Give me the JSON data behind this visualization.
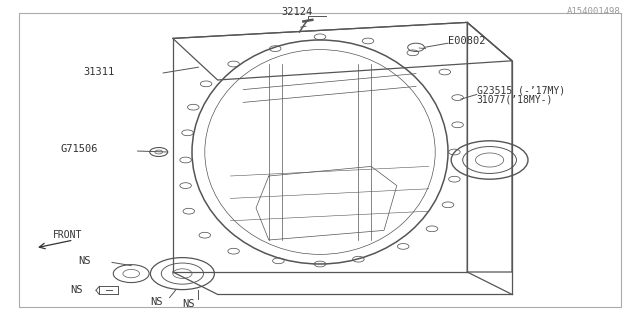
{
  "bg_color": "#ffffff",
  "border_color": "#888888",
  "line_color": "#555555",
  "text_color": "#333333",
  "title_code": "A154001498",
  "front_label": "FRONT",
  "label_32124": "32124",
  "label_E00802": "E00802",
  "label_31311": "31311",
  "label_G23515": "G23515 (-’17MY)",
  "label_31077": "31077(’18MY-)",
  "label_G71506": "G71506",
  "label_NS": "NS",
  "fs": 7.5,
  "fs_small": 7.0
}
